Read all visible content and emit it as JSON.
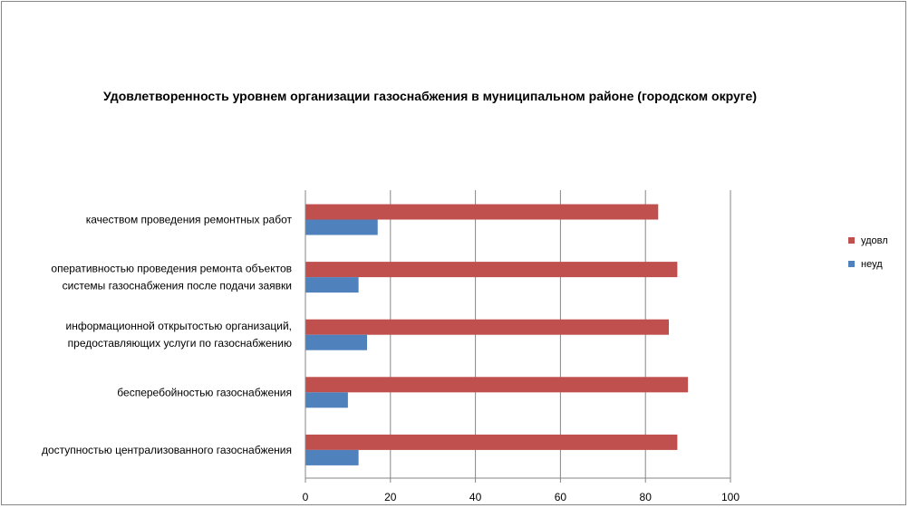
{
  "chart_data": {
    "type": "bar",
    "orientation": "horizontal",
    "title": "Удовлетворенность уровнем организации газоснабжения в муниципальном районе (городском округе)",
    "categories": [
      [
        "доступностью централизованного газоснабжения"
      ],
      [
        "бесперебойностью газоснабжения"
      ],
      [
        "информационной открытостью организаций,",
        "предоставляющих услуги по газоснабжению"
      ],
      [
        "оперативностью проведения ремонта объектов",
        "системы газоснабжения после подачи заявки"
      ],
      [
        "качеством проведения ремонтных работ"
      ]
    ],
    "series": [
      {
        "name": "удовл",
        "color": "#c0504d",
        "values": [
          87.5,
          90,
          85.5,
          87.5,
          83
        ]
      },
      {
        "name": "неуд",
        "color": "#4f81bd",
        "values": [
          12.5,
          10,
          14.5,
          12.5,
          17
        ]
      }
    ],
    "xlim": [
      0,
      100
    ],
    "xticks": [
      0,
      20,
      40,
      60,
      80,
      100
    ],
    "grid": true,
    "legend_position": "right"
  }
}
